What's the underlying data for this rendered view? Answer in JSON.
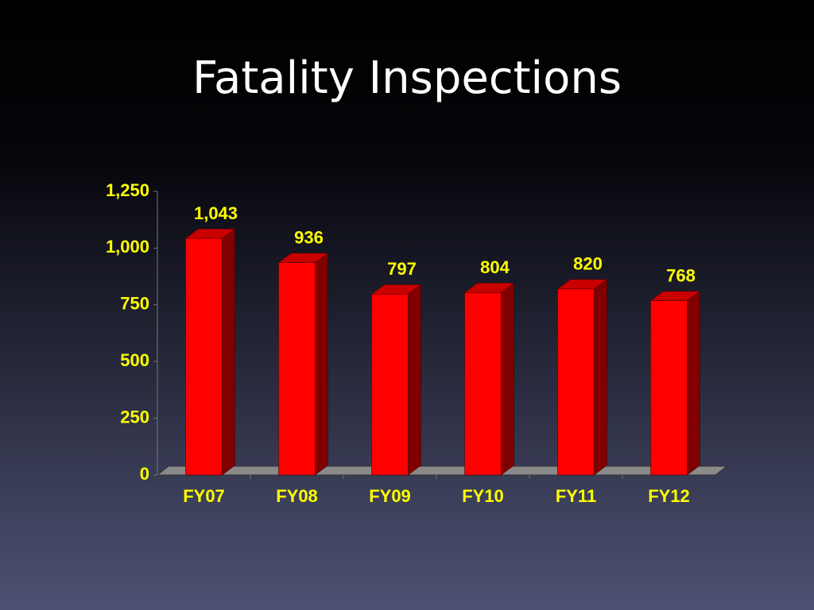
{
  "chart_data": {
    "type": "bar",
    "title": "Fatality Inspections",
    "categories": [
      "FY07",
      "FY08",
      "FY09",
      "FY10",
      "FY11",
      "FY12"
    ],
    "values": [
      1043,
      936,
      797,
      804,
      820,
      768
    ],
    "value_labels": [
      "1,043",
      "936",
      "797",
      "804",
      "820",
      "768"
    ],
    "color": "#ff0000",
    "ylim": [
      0,
      1250
    ],
    "yticks": [
      0,
      250,
      500,
      750,
      {
        "value": 1000,
        "label": "1,000"
      },
      {
        "value": 1250,
        "label": "1,250"
      }
    ]
  }
}
